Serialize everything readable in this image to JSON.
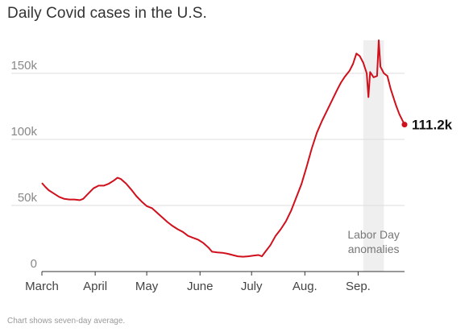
{
  "title": "Daily Covid cases in the U.S.",
  "note": "Chart shows seven-day average.",
  "colors": {
    "line": "#d0101c",
    "band": "#efefef",
    "grid": "#dddddd"
  },
  "chart_data": {
    "type": "line",
    "title": "Daily Covid cases in the U.S.",
    "xlabel": "",
    "ylabel": "",
    "ylim": [
      0,
      175000
    ],
    "xlim": [
      "2021-03-01",
      "2021-09-28"
    ],
    "grid": true,
    "y_ticks": [
      {
        "value": 0,
        "label": "0"
      },
      {
        "value": 50000,
        "label": "50k"
      },
      {
        "value": 100000,
        "label": "100k"
      },
      {
        "value": 150000,
        "label": "150k"
      }
    ],
    "x_ticks": [
      {
        "date": "2021-03-01",
        "label": "March"
      },
      {
        "date": "2021-04-01",
        "label": "April"
      },
      {
        "date": "2021-05-01",
        "label": "May"
      },
      {
        "date": "2021-06-01",
        "label": "June"
      },
      {
        "date": "2021-07-01",
        "label": "July"
      },
      {
        "date": "2021-08-01",
        "label": "Aug."
      },
      {
        "date": "2021-09-01",
        "label": "Sep."
      }
    ],
    "shaded_region": {
      "start": "2021-09-04",
      "end": "2021-09-16",
      "label_lines": [
        "Labor Day",
        "anomalies"
      ]
    },
    "end_label": "111.2k",
    "series": [
      {
        "values": [
          [
            "2021-03-01",
            67000
          ],
          [
            "2021-03-03",
            64000
          ],
          [
            "2021-03-05",
            61500
          ],
          [
            "2021-03-08",
            59000
          ],
          [
            "2021-03-11",
            56500
          ],
          [
            "2021-03-14",
            55000
          ],
          [
            "2021-03-17",
            54500
          ],
          [
            "2021-03-20",
            54500
          ],
          [
            "2021-03-23",
            54000
          ],
          [
            "2021-03-25",
            55000
          ],
          [
            "2021-03-28",
            59000
          ],
          [
            "2021-03-31",
            63000
          ],
          [
            "2021-04-03",
            65000
          ],
          [
            "2021-04-06",
            65000
          ],
          [
            "2021-04-09",
            66500
          ],
          [
            "2021-04-12",
            69000
          ],
          [
            "2021-04-14",
            71000
          ],
          [
            "2021-04-16",
            70000
          ],
          [
            "2021-04-19",
            66500
          ],
          [
            "2021-04-22",
            62000
          ],
          [
            "2021-04-25",
            57000
          ],
          [
            "2021-04-28",
            53000
          ],
          [
            "2021-05-01",
            49500
          ],
          [
            "2021-05-04",
            48000
          ],
          [
            "2021-05-07",
            44500
          ],
          [
            "2021-05-10",
            41000
          ],
          [
            "2021-05-13",
            37500
          ],
          [
            "2021-05-16",
            34500
          ],
          [
            "2021-05-19",
            32000
          ],
          [
            "2021-05-22",
            30000
          ],
          [
            "2021-05-25",
            27000
          ],
          [
            "2021-05-28",
            25500
          ],
          [
            "2021-05-31",
            24000
          ],
          [
            "2021-06-03",
            21500
          ],
          [
            "2021-06-06",
            18000
          ],
          [
            "2021-06-08",
            15000
          ],
          [
            "2021-06-11",
            14500
          ],
          [
            "2021-06-14",
            14200
          ],
          [
            "2021-06-17",
            13500
          ],
          [
            "2021-06-20",
            12500
          ],
          [
            "2021-06-23",
            11500
          ],
          [
            "2021-06-26",
            11200
          ],
          [
            "2021-06-29",
            11500
          ],
          [
            "2021-07-02",
            12000
          ],
          [
            "2021-07-05",
            12500
          ],
          [
            "2021-07-07",
            11500
          ],
          [
            "2021-07-09",
            15000
          ],
          [
            "2021-07-12",
            20000
          ],
          [
            "2021-07-15",
            27000
          ],
          [
            "2021-07-18",
            32000
          ],
          [
            "2021-07-21",
            38000
          ],
          [
            "2021-07-24",
            46000
          ],
          [
            "2021-07-27",
            56000
          ],
          [
            "2021-07-30",
            66000
          ],
          [
            "2021-08-02",
            79000
          ],
          [
            "2021-08-05",
            93000
          ],
          [
            "2021-08-08",
            105000
          ],
          [
            "2021-08-11",
            114000
          ],
          [
            "2021-08-14",
            122000
          ],
          [
            "2021-08-17",
            130000
          ],
          [
            "2021-08-20",
            138000
          ],
          [
            "2021-08-22",
            143000
          ],
          [
            "2021-08-24",
            147000
          ],
          [
            "2021-08-27",
            152000
          ],
          [
            "2021-08-29",
            157000
          ],
          [
            "2021-08-31",
            165000
          ],
          [
            "2021-09-02",
            163000
          ],
          [
            "2021-09-04",
            158000
          ],
          [
            "2021-09-06",
            150000
          ],
          [
            "2021-09-07",
            132000
          ],
          [
            "2021-09-08",
            151000
          ],
          [
            "2021-09-10",
            147000
          ],
          [
            "2021-09-12",
            148000
          ],
          [
            "2021-09-13",
            175000
          ],
          [
            "2021-09-14",
            155000
          ],
          [
            "2021-09-16",
            150000
          ],
          [
            "2021-09-18",
            148000
          ],
          [
            "2021-09-20",
            138000
          ],
          [
            "2021-09-23",
            126000
          ],
          [
            "2021-09-25",
            119000
          ],
          [
            "2021-09-28",
            111200
          ]
        ]
      }
    ]
  }
}
